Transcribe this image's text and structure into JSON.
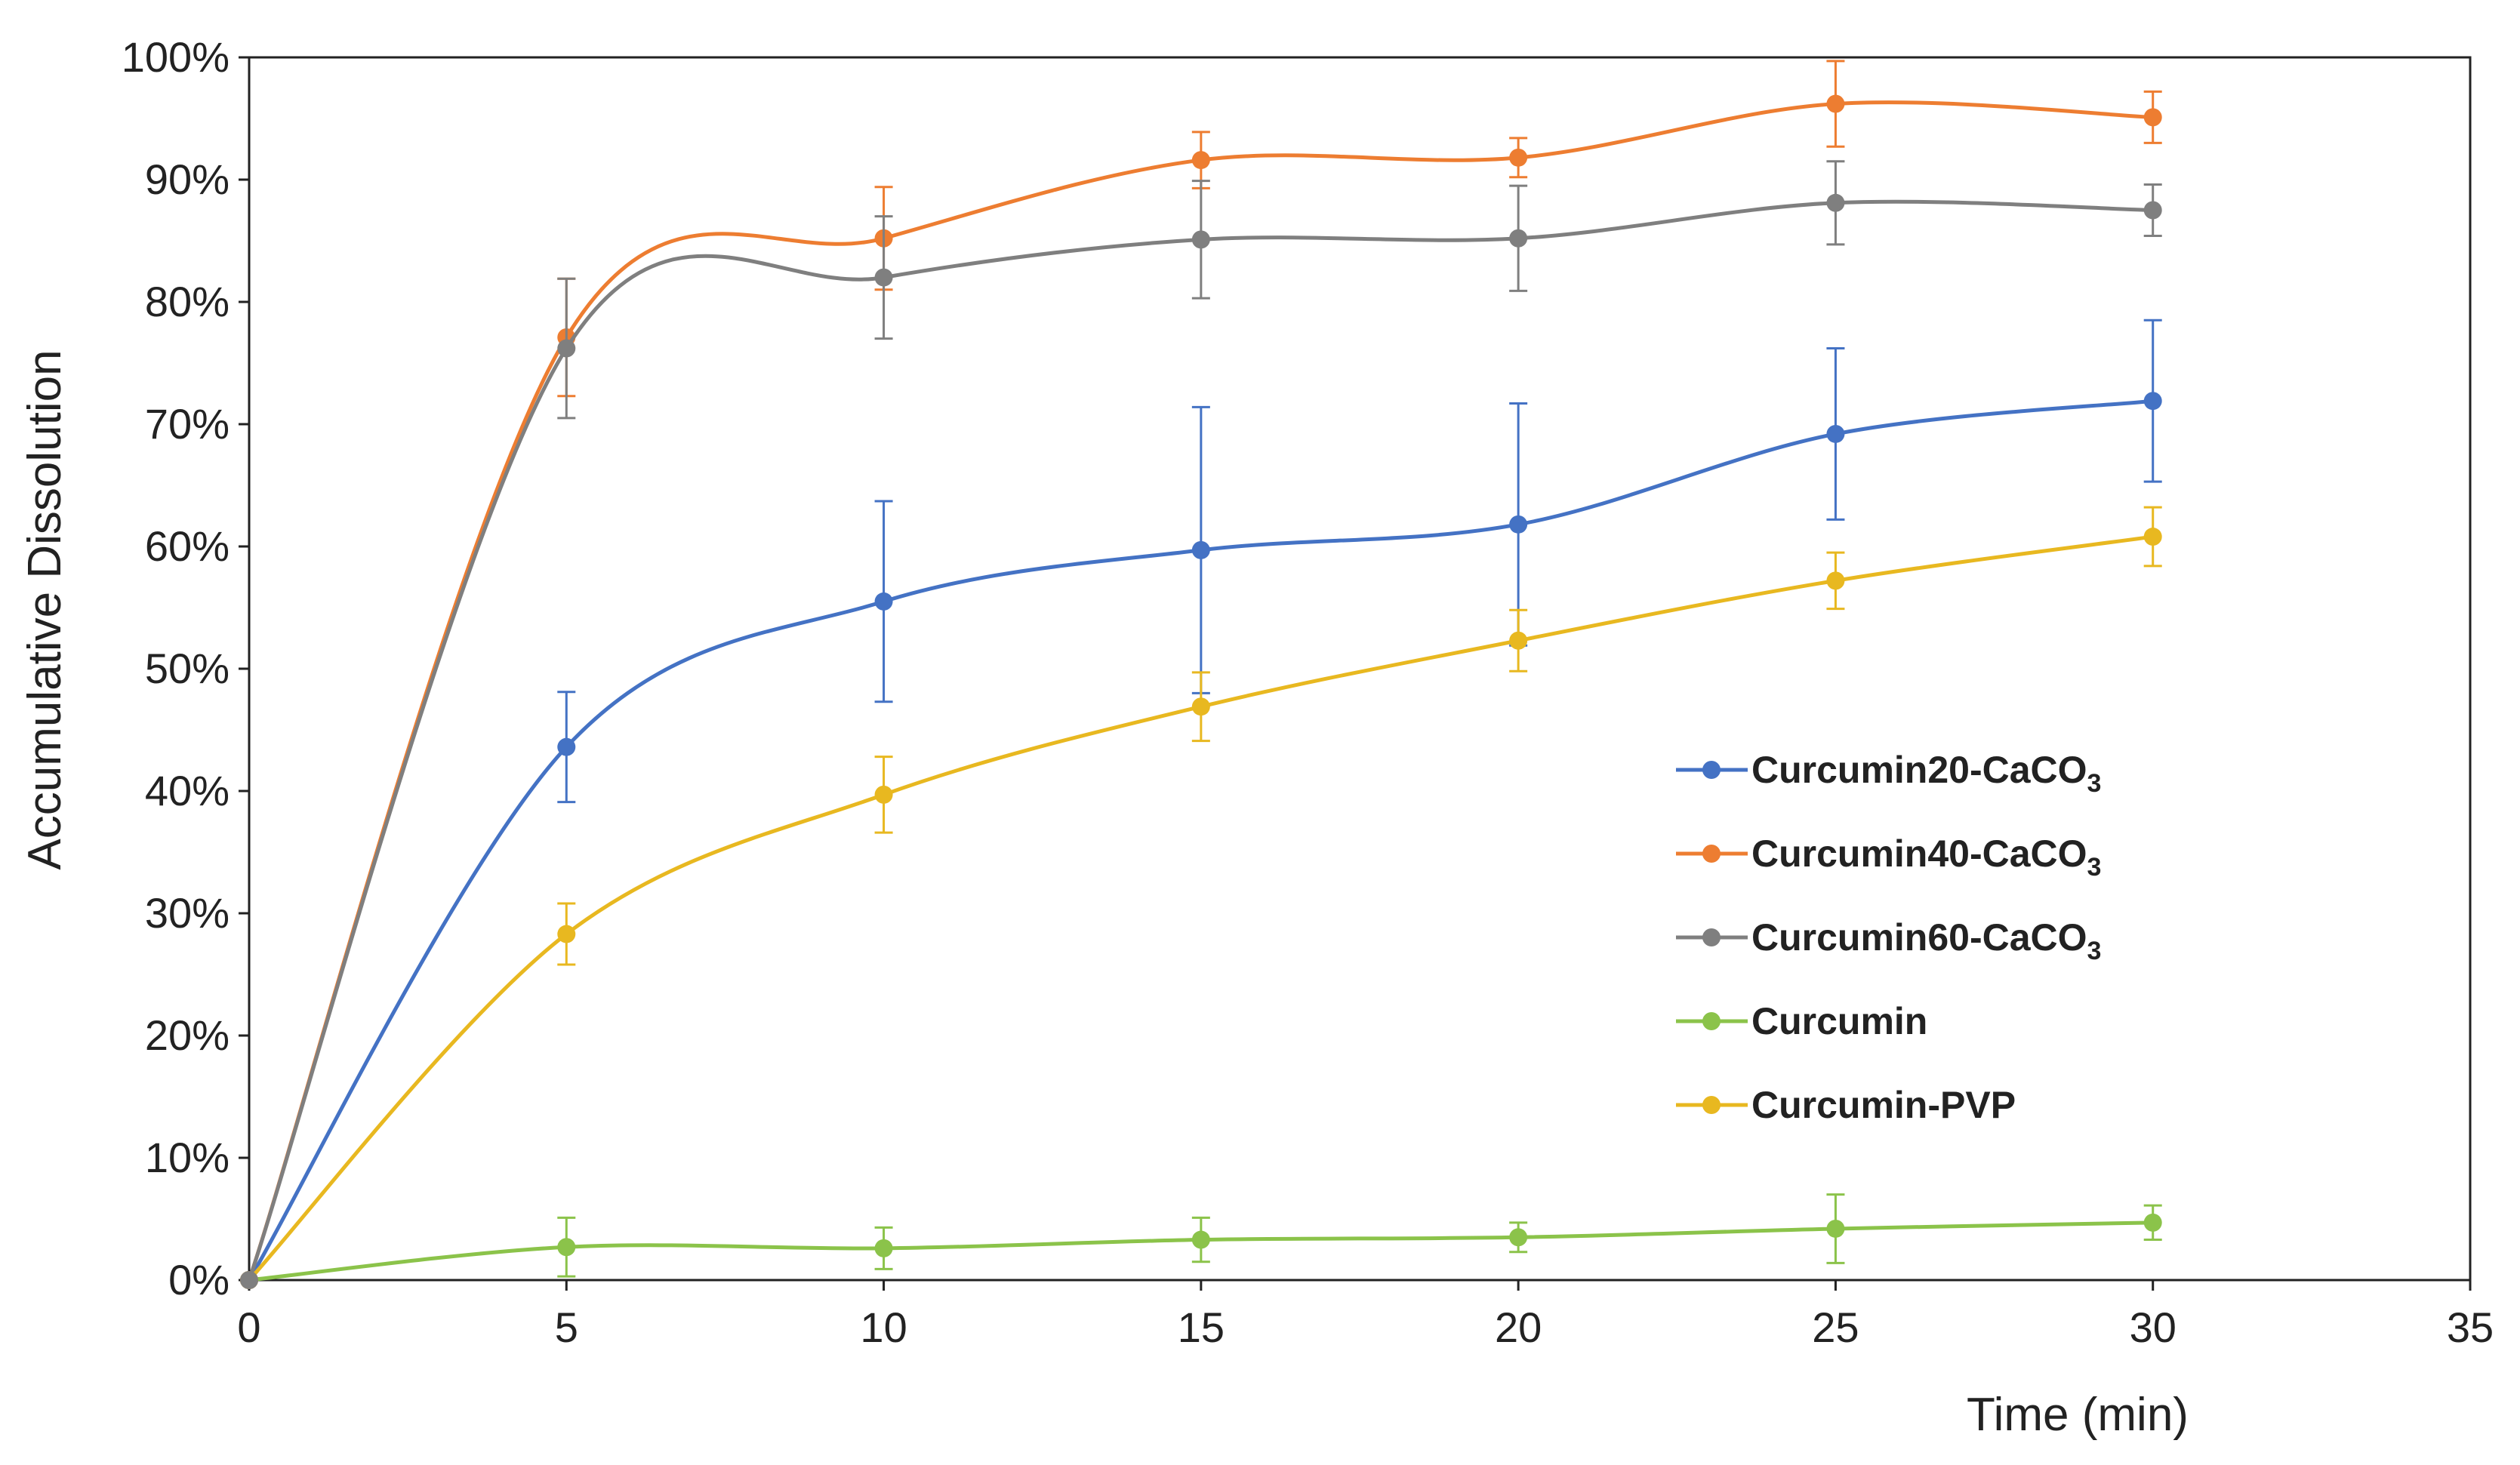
{
  "chart_data": {
    "type": "line",
    "title": "",
    "xlabel": "Time (min)",
    "ylabel": "Accumulative Dissolution",
    "xlim": [
      0,
      35
    ],
    "ylim": [
      0,
      1
    ],
    "xticks": [
      0,
      5,
      10,
      15,
      20,
      25,
      30,
      35
    ],
    "xtick_labels": [
      "0",
      "5",
      "10",
      "15",
      "20",
      "25",
      "30",
      "35"
    ],
    "yticks": [
      0,
      0.1,
      0.2,
      0.3,
      0.4,
      0.5,
      0.6,
      0.7,
      0.8,
      0.9,
      1.0
    ],
    "ytick_labels": [
      "0%",
      "10%",
      "20%",
      "30%",
      "40%",
      "50%",
      "60%",
      "70%",
      "80%",
      "90%",
      "100%"
    ],
    "grid": false,
    "legend_position": "right-center",
    "x": [
      0,
      5,
      10,
      15,
      20,
      25,
      30
    ],
    "series": [
      {
        "name_main": "Curcumin20-CaCO",
        "name_sub": "3",
        "color": "#4472C4",
        "values": [
          0,
          0.436,
          0.555,
          0.597,
          0.618,
          0.692,
          0.719
        ],
        "errors": [
          0,
          0.045,
          0.082,
          0.117,
          0.099,
          0.07,
          0.066
        ]
      },
      {
        "name_main": "Curcumin40-CaCO",
        "name_sub": "3",
        "color": "#ED7D31",
        "values": [
          0,
          0.771,
          0.852,
          0.916,
          0.918,
          0.962,
          0.951
        ],
        "errors": [
          0,
          0.048,
          0.042,
          0.023,
          0.016,
          0.035,
          0.021
        ]
      },
      {
        "name_main": "Curcumin60-CaCO",
        "name_sub": "3",
        "color": "#7F7F7F",
        "values": [
          0,
          0.762,
          0.82,
          0.851,
          0.852,
          0.881,
          0.875
        ],
        "errors": [
          0,
          0.057,
          0.05,
          0.048,
          0.043,
          0.034,
          0.021
        ]
      },
      {
        "name_main": "Curcumin",
        "name_sub": "",
        "color": "#8BC34A",
        "values": [
          0,
          0.027,
          0.026,
          0.033,
          0.035,
          0.042,
          0.047
        ],
        "errors": [
          0,
          0.024,
          0.017,
          0.018,
          0.012,
          0.028,
          0.014
        ]
      },
      {
        "name_main": "Curcumin-PVP",
        "name_sub": "",
        "color": "#E8B820",
        "values": [
          0,
          0.283,
          0.397,
          0.469,
          0.523,
          0.572,
          0.608
        ],
        "errors": [
          0,
          0.025,
          0.031,
          0.028,
          0.025,
          0.023,
          0.024
        ]
      }
    ]
  }
}
